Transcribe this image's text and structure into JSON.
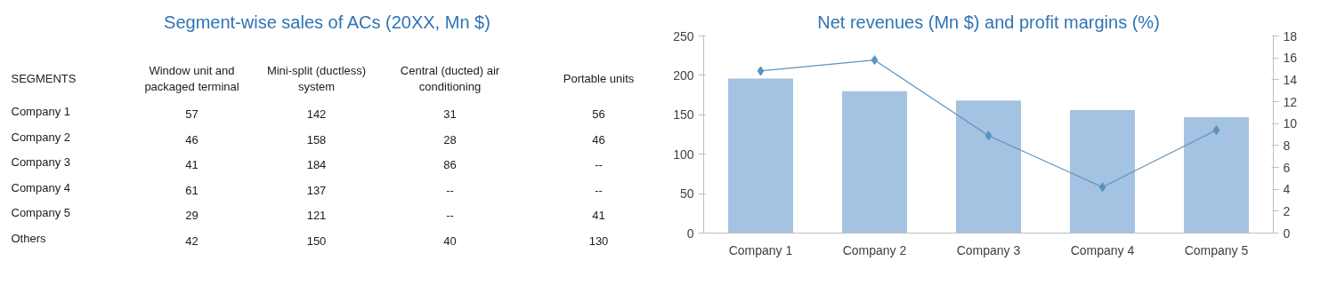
{
  "chart_data": [
    {
      "type": "heatmap",
      "title": "Segment-wise sales of ACs (20XX, Mn $)",
      "ylabel": "SEGMENTS",
      "data_labels": true,
      "categories": [
        "Window unit and\npackaged terminal",
        "Mini-split (ductless)\nsystem",
        "Central (ducted) air\nconditioning",
        "Portable units"
      ],
      "y_categories": [
        "Company 1",
        "Company 2",
        "Company 3",
        "Company 4",
        "Company 5",
        "Others"
      ],
      "cells": [
        [
          57,
          142,
          31,
          56
        ],
        [
          46,
          158,
          28,
          46
        ],
        [
          41,
          184,
          86,
          null
        ],
        [
          61,
          137,
          null,
          null
        ],
        [
          29,
          121,
          null,
          41
        ],
        [
          42,
          150,
          40,
          130
        ]
      ],
      "cell_labels": [
        [
          "57",
          "142",
          "31",
          "56"
        ],
        [
          "46",
          "158",
          "28",
          "46"
        ],
        [
          "41",
          "184",
          "86",
          "--"
        ],
        [
          "61",
          "137",
          "--",
          "--"
        ],
        [
          "29",
          "121",
          "--",
          "41"
        ],
        [
          "42",
          "150",
          "40",
          "130"
        ]
      ]
    },
    {
      "type": "bar",
      "title": "Net revenues (Mn $) and profit margins (%)",
      "categories": [
        "Company 1",
        "Company 2",
        "Company 3",
        "Company 4",
        "Company 5"
      ],
      "series": [
        {
          "type": "bar",
          "color": "#a4c2e1",
          "values": [
            196,
            180,
            168,
            156,
            147
          ]
        },
        {
          "type": "line",
          "axis": "y2",
          "color": "#5b93c0",
          "marker": "diamond",
          "values": [
            14.8,
            15.8,
            8.9,
            4.2,
            9.4
          ]
        }
      ],
      "ylim": [
        0,
        250
      ],
      "yticks": [
        0,
        50,
        100,
        150,
        200,
        250
      ],
      "y2lim": [
        0,
        18
      ],
      "y2ticks": [
        0,
        2,
        4,
        6,
        8,
        10,
        12,
        14,
        16,
        18
      ],
      "grid": false
    }
  ]
}
